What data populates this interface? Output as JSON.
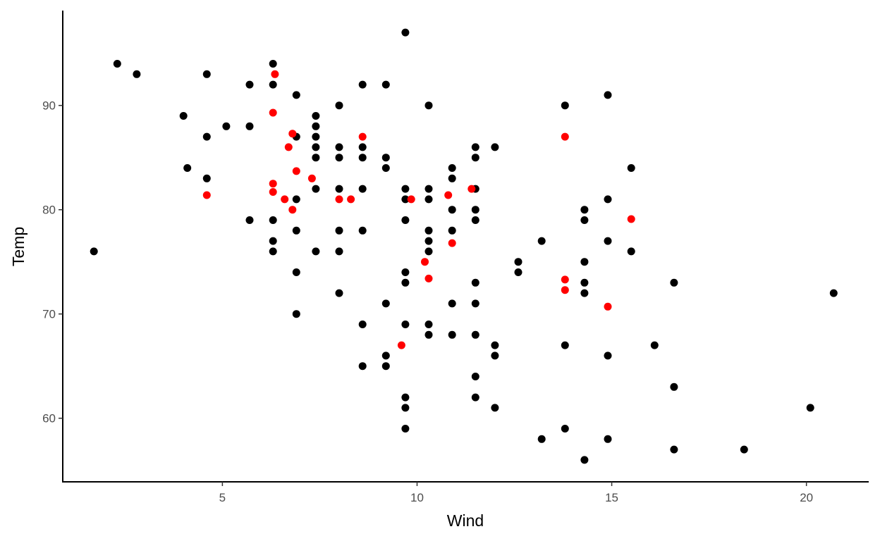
{
  "chart_data": {
    "type": "scatter",
    "title": "",
    "xlabel": "Wind",
    "ylabel": "Temp",
    "xlim": [
      0.9,
      21.6
    ],
    "ylim": [
      53.9,
      99.1
    ],
    "xticks": [
      5,
      10,
      15,
      20
    ],
    "yticks": [
      60,
      70,
      80,
      90
    ],
    "grid": false,
    "legend": "none",
    "series": [
      {
        "color": "#000000",
        "points": [
          [
            1.7,
            76
          ],
          [
            2.3,
            94
          ],
          [
            2.8,
            93
          ],
          [
            4.0,
            89
          ],
          [
            4.1,
            84
          ],
          [
            4.6,
            93
          ],
          [
            4.6,
            87
          ],
          [
            4.6,
            83
          ],
          [
            5.1,
            88
          ],
          [
            5.7,
            92
          ],
          [
            5.7,
            88
          ],
          [
            5.7,
            79
          ],
          [
            6.3,
            94
          ],
          [
            6.3,
            92
          ],
          [
            6.3,
            79
          ],
          [
            6.3,
            77
          ],
          [
            6.3,
            76
          ],
          [
            6.9,
            91
          ],
          [
            6.9,
            87
          ],
          [
            6.9,
            81
          ],
          [
            6.9,
            78
          ],
          [
            6.9,
            74
          ],
          [
            6.9,
            70
          ],
          [
            7.4,
            89
          ],
          [
            7.4,
            88
          ],
          [
            7.4,
            87
          ],
          [
            7.4,
            86
          ],
          [
            7.4,
            85
          ],
          [
            7.4,
            82
          ],
          [
            7.4,
            76
          ],
          [
            8.0,
            90
          ],
          [
            8.0,
            86
          ],
          [
            8.0,
            85
          ],
          [
            8.0,
            82
          ],
          [
            8.0,
            78
          ],
          [
            8.0,
            76
          ],
          [
            8.0,
            72
          ],
          [
            8.6,
            92
          ],
          [
            8.6,
            86
          ],
          [
            8.6,
            85
          ],
          [
            8.6,
            82
          ],
          [
            8.6,
            78
          ],
          [
            8.6,
            69
          ],
          [
            8.6,
            65
          ],
          [
            9.2,
            92
          ],
          [
            9.2,
            85
          ],
          [
            9.2,
            84
          ],
          [
            9.2,
            71
          ],
          [
            9.2,
            66
          ],
          [
            9.2,
            65
          ],
          [
            9.7,
            97
          ],
          [
            9.7,
            82
          ],
          [
            9.7,
            81
          ],
          [
            9.7,
            79
          ],
          [
            9.7,
            74
          ],
          [
            9.7,
            73
          ],
          [
            9.7,
            69
          ],
          [
            9.7,
            62
          ],
          [
            9.7,
            61
          ],
          [
            9.7,
            59
          ],
          [
            10.3,
            90
          ],
          [
            10.3,
            82
          ],
          [
            10.3,
            81
          ],
          [
            10.3,
            78
          ],
          [
            10.3,
            77
          ],
          [
            10.3,
            76
          ],
          [
            10.3,
            69
          ],
          [
            10.3,
            68
          ],
          [
            10.9,
            84
          ],
          [
            10.9,
            83
          ],
          [
            10.9,
            80
          ],
          [
            10.9,
            78
          ],
          [
            10.9,
            71
          ],
          [
            10.9,
            68
          ],
          [
            11.5,
            86
          ],
          [
            11.5,
            85
          ],
          [
            11.5,
            82
          ],
          [
            11.5,
            80
          ],
          [
            11.5,
            79
          ],
          [
            11.5,
            73
          ],
          [
            11.5,
            71
          ],
          [
            11.5,
            68
          ],
          [
            11.5,
            64
          ],
          [
            11.5,
            62
          ],
          [
            12.0,
            86
          ],
          [
            12.0,
            67
          ],
          [
            12.0,
            66
          ],
          [
            12.0,
            61
          ],
          [
            12.6,
            75
          ],
          [
            12.6,
            74
          ],
          [
            13.2,
            77
          ],
          [
            13.2,
            58
          ],
          [
            13.8,
            90
          ],
          [
            13.8,
            67
          ],
          [
            13.8,
            59
          ],
          [
            14.3,
            80
          ],
          [
            14.3,
            79
          ],
          [
            14.3,
            75
          ],
          [
            14.3,
            73
          ],
          [
            14.3,
            72
          ],
          [
            14.3,
            56
          ],
          [
            14.9,
            91
          ],
          [
            14.9,
            81
          ],
          [
            14.9,
            77
          ],
          [
            14.9,
            66
          ],
          [
            14.9,
            58
          ],
          [
            15.5,
            84
          ],
          [
            15.5,
            76
          ],
          [
            16.1,
            67
          ],
          [
            16.6,
            73
          ],
          [
            16.6,
            63
          ],
          [
            16.6,
            57
          ],
          [
            18.4,
            57
          ],
          [
            20.1,
            61
          ],
          [
            20.7,
            72
          ]
        ]
      },
      {
        "color": "#ff0000",
        "points": [
          [
            4.6,
            81.4
          ],
          [
            6.3,
            89.3
          ],
          [
            6.3,
            82.5
          ],
          [
            6.3,
            81.7
          ],
          [
            6.35,
            93
          ],
          [
            6.6,
            81
          ],
          [
            6.7,
            86
          ],
          [
            6.8,
            87.3
          ],
          [
            6.8,
            80
          ],
          [
            6.9,
            83.7
          ],
          [
            7.3,
            83
          ],
          [
            8.0,
            81
          ],
          [
            8.3,
            81
          ],
          [
            8.6,
            87
          ],
          [
            9.6,
            67
          ],
          [
            9.85,
            81
          ],
          [
            10.2,
            75
          ],
          [
            10.3,
            73.4
          ],
          [
            10.8,
            81.4
          ],
          [
            10.9,
            76.8
          ],
          [
            11.4,
            82
          ],
          [
            13.8,
            87
          ],
          [
            13.8,
            73.3
          ],
          [
            13.8,
            72.3
          ],
          [
            14.9,
            70.7
          ],
          [
            15.5,
            79.1
          ]
        ]
      }
    ]
  }
}
